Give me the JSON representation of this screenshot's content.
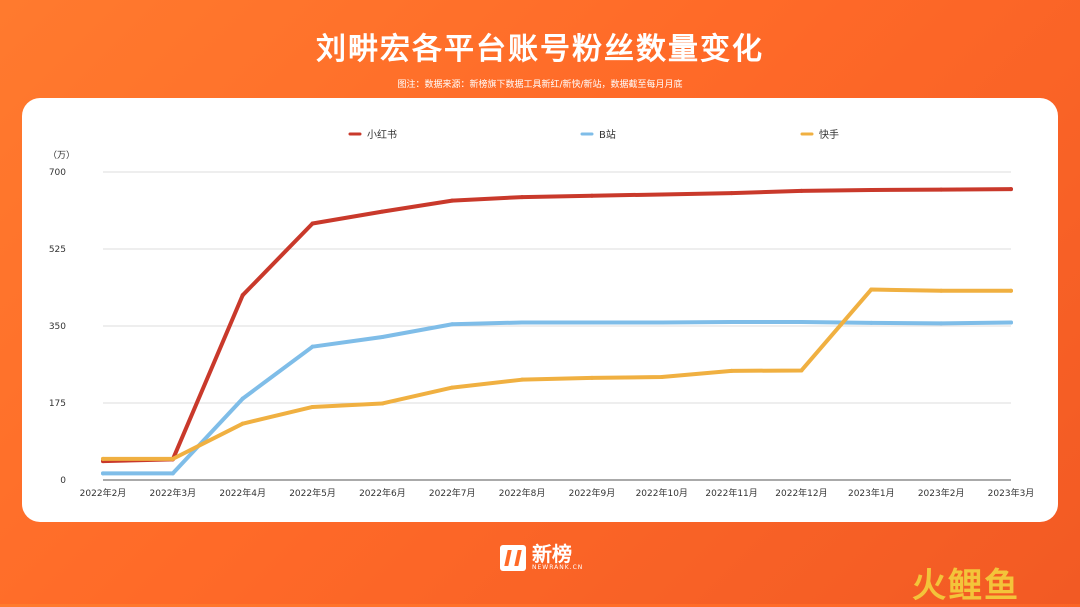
{
  "page": {
    "title": "刘畊宏各平台账号粉丝数量变化",
    "note": "图注：数据来源：新榜旗下数据工具新红/新快/新站，数据截至每月月底"
  },
  "brand": {
    "logo_text": "新榜",
    "logo_sub": "NEWRANK.CN",
    "watermark": "火鲤鱼"
  },
  "chart_data": {
    "type": "line",
    "ylabel": "（万）",
    "ylim": [
      0,
      700
    ],
    "yticks": [
      0,
      175,
      350,
      525,
      700
    ],
    "grid": true,
    "legend_position": "top",
    "categories": [
      "2022年2月",
      "2022年3月",
      "2022年4月",
      "2022年5月",
      "2022年6月",
      "2022年7月",
      "2022年8月",
      "2022年9月",
      "2022年10月",
      "2022年11月",
      "2022年12月",
      "2023年1月",
      "2023年2月",
      "2023年3月"
    ],
    "series": [
      {
        "name": "小红书",
        "color": "#c9392b",
        "values": [
          43,
          47,
          420,
          583,
          610,
          635,
          643,
          646,
          649,
          652,
          657,
          659,
          660,
          661
        ]
      },
      {
        "name": "B站",
        "color": "#7fbde8",
        "values": [
          15,
          15,
          185,
          303,
          325,
          354,
          358,
          358,
          358,
          359,
          359,
          357,
          356,
          358
        ]
      },
      {
        "name": "快手",
        "color": "#f0b041",
        "values": [
          48,
          48,
          128,
          166,
          174,
          210,
          228,
          232,
          234,
          248,
          249,
          433,
          430,
          430
        ]
      }
    ]
  }
}
